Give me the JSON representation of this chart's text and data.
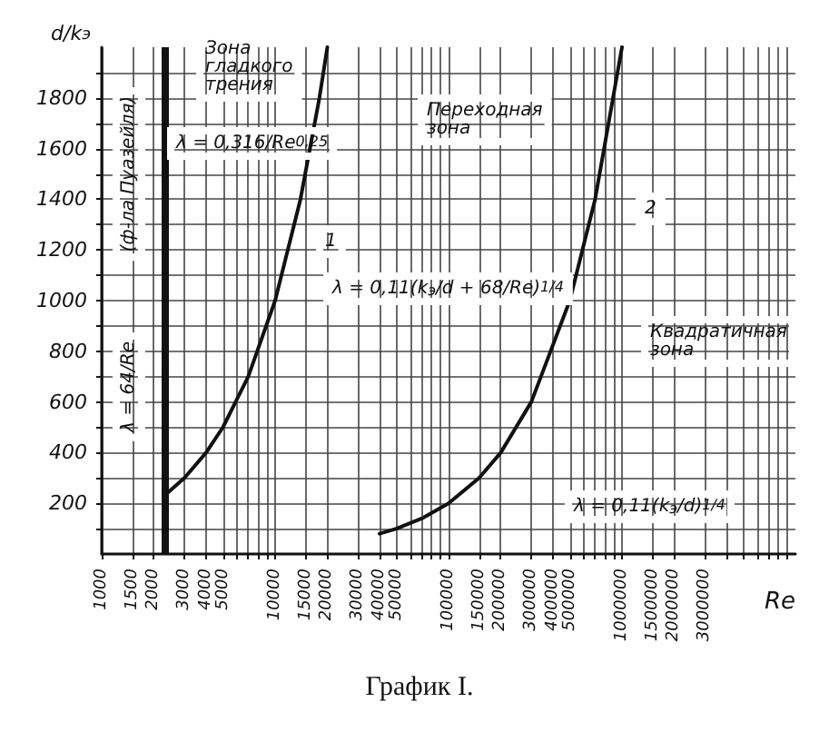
{
  "chart_data": {
    "type": "line",
    "title": "График I.",
    "xlabel": "Re",
    "ylabel": "d/k$_{э}$",
    "x": [
      2300,
      3000,
      4000,
      5000,
      7000,
      10000,
      14000,
      18000,
      20000
    ],
    "series": [
      {
        "color": "#111111",
        "values": [
          230,
          300,
          400,
          500,
          700,
          1000,
          1400,
          1800,
          2000
        ]
      },
      {
        "color": "#111111",
        "x": [
          40000,
          50000,
          70000,
          100000,
          150000,
          200000,
          300000,
          500000,
          700000,
          1000000
        ],
        "values": [
          80,
          100,
          140,
          200,
          300,
          400,
          600,
          1000,
          1400,
          2000
        ]
      }
    ],
    "log": "x",
    "xlim": [
      1000,
      10000000
    ],
    "ylim": [
      0,
      2000
    ],
    "xticks": [
      1000,
      1500,
      2000,
      3000,
      4000,
      5000,
      {
        "value": 6000,
        "label": null
      },
      {
        "value": 7000,
        "label": null
      },
      {
        "value": 8000,
        "label": null
      },
      {
        "value": 9000,
        "label": null
      },
      10000,
      15000,
      20000,
      30000,
      40000,
      50000,
      {
        "value": 60000,
        "label": null
      },
      {
        "value": 70000,
        "label": null
      },
      {
        "value": 80000,
        "label": null
      },
      {
        "value": 90000,
        "label": null
      },
      100000,
      150000,
      200000,
      300000,
      400000,
      500000,
      {
        "value": 600000,
        "label": null
      },
      {
        "value": 700000,
        "label": null
      },
      {
        "value": 800000,
        "label": null
      },
      {
        "value": 900000,
        "label": null
      },
      1000000,
      1500000,
      2000000,
      3000000,
      {
        "value": 4000000,
        "label": null
      },
      {
        "value": 5000000,
        "label": null
      },
      {
        "value": 6000000,
        "label": null
      },
      {
        "value": 7000000,
        "label": null
      },
      {
        "value": 8000000,
        "label": null
      },
      {
        "value": 9000000,
        "label": null
      }
    ],
    "yticks": [
      {
        "value": 100,
        "label": null
      },
      200,
      {
        "value": 300,
        "label": null
      },
      400,
      {
        "value": 500,
        "label": null
      },
      600,
      {
        "value": 700,
        "label": null
      },
      800,
      {
        "value": 900,
        "label": null
      },
      1000,
      {
        "value": 1100,
        "label": null
      },
      1200,
      {
        "value": 1300,
        "label": null
      },
      1400,
      {
        "value": 1500,
        "label": null
      },
      1600,
      {
        "value": 1700,
        "label": null
      },
      1800,
      {
        "value": 1900,
        "label": null
      }
    ],
    "grid": true,
    "marker": "none",
    "line_style": "solid",
    "ref_lines": [
      {
        "axis": "x",
        "value": 2300,
        "color": "#111111"
      }
    ],
    "annotations": [
      "Зона гладкого трения",
      "λ = 0,316/Re$^{0,25}$",
      "Переходная зона",
      "Квадратичная зона",
      "λ = 0,11(k$_{э}$/d + 68/Re)$^{1/4}$",
      "λ = 0,11(k$_{э}$/d)$^{1/4}$",
      "(ф-ла Пуазейля)",
      "λ = 64/Re",
      "1",
      "2"
    ]
  }
}
